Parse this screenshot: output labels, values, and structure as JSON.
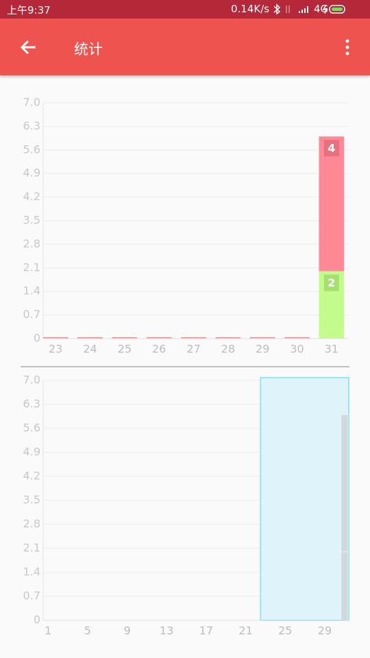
{
  "status_bar": {
    "time": "上午9:37",
    "speed": "0.14K/s",
    "network": "4G"
  },
  "app_bar": {
    "title": "统计"
  },
  "chart_data": [
    {
      "type": "bar",
      "stacked": true,
      "categories": [
        "23",
        "24",
        "25",
        "26",
        "27",
        "28",
        "29",
        "30",
        "31"
      ],
      "series": [
        {
          "color": "#c3fb8c",
          "label_color": "#a6e070",
          "values": [
            0,
            0,
            0,
            0,
            0,
            0,
            0,
            0,
            2
          ]
        },
        {
          "color": "#ff8a96",
          "label_color": "#e8707e",
          "values": [
            0,
            0,
            0,
            0,
            0,
            0,
            0,
            0,
            4
          ]
        }
      ],
      "ylim": [
        0,
        7
      ],
      "yticks": [
        0,
        0.7,
        1.4,
        2.1,
        2.8,
        3.5,
        4.2,
        4.9,
        5.6,
        6.3,
        {
          "value": 7,
          "label": "7.0"
        }
      ],
      "grid": true
    },
    {
      "type": "bar",
      "stacked": true,
      "x": [
        1,
        2,
        3,
        4,
        5,
        6,
        7,
        8,
        9,
        10,
        11,
        12,
        13,
        14,
        15,
        16,
        17,
        18,
        19,
        20,
        21,
        22,
        23,
        24,
        25,
        26,
        27,
        28,
        29,
        30,
        31
      ],
      "series": [
        {
          "color": "#cfd8dc",
          "values": [
            0,
            0,
            0,
            0,
            0,
            0,
            0,
            0,
            0,
            0,
            0,
            0,
            0,
            0,
            0,
            0,
            0,
            0,
            0,
            0,
            0,
            0,
            0,
            0,
            0,
            0,
            0,
            0,
            0,
            0,
            2
          ]
        },
        {
          "color": "#cfd8dc",
          "values": [
            0,
            0,
            0,
            0,
            0,
            0,
            0,
            0,
            0,
            0,
            0,
            0,
            0,
            0,
            0,
            0,
            0,
            0,
            0,
            0,
            0,
            0,
            0,
            0,
            0,
            0,
            0,
            0,
            0,
            0,
            4
          ]
        }
      ],
      "xlim": [
        0.5,
        31.5
      ],
      "xticks": [
        1,
        5,
        9,
        13,
        17,
        21,
        25,
        29
      ],
      "ylim": [
        0,
        7
      ],
      "yticks": [
        0,
        0.7,
        1.4,
        2.1,
        2.8,
        3.5,
        4.2,
        4.9,
        5.6,
        6.3,
        {
          "value": 7,
          "label": "7.0"
        }
      ],
      "grid": true,
      "brush": [
        22.5,
        31.5
      ]
    }
  ]
}
